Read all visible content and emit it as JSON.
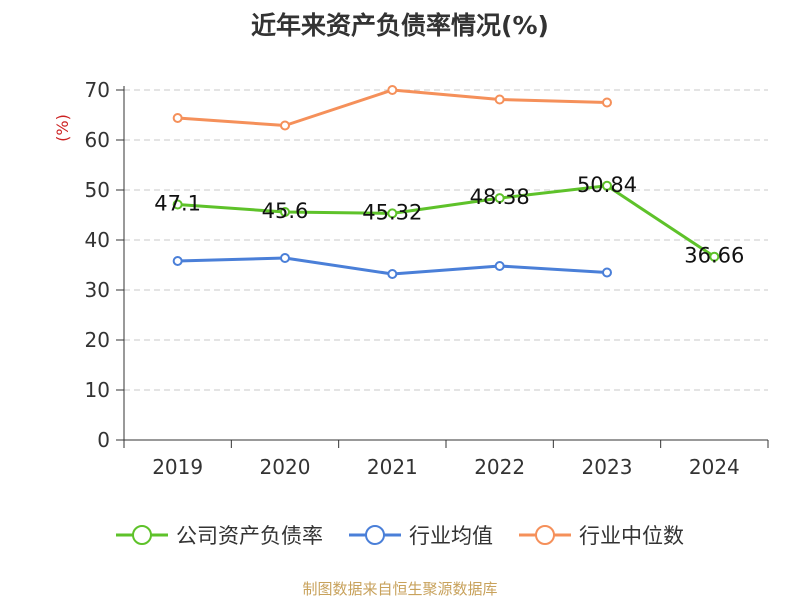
{
  "chart_data": {
    "type": "line",
    "title": "近年来资产负债率情况(%)",
    "ylabel": "(%)",
    "xlabel": "",
    "categories": [
      "2019",
      "2020",
      "2021",
      "2022",
      "2023",
      "2024"
    ],
    "ylim": [
      0,
      70
    ],
    "yticks": [
      0,
      10,
      20,
      30,
      40,
      50,
      60,
      70
    ],
    "grid": true,
    "legend_position": "bottom",
    "series": [
      {
        "name": "公司资产负债率",
        "color": "#5ec22a",
        "values": [
          47.1,
          45.6,
          45.32,
          48.38,
          50.84,
          36.66
        ],
        "data_labels": [
          "47.1",
          "45.6",
          "45.32",
          "48.38",
          "50.84",
          "36.66"
        ]
      },
      {
        "name": "行业均值",
        "color": "#4a7fd8",
        "values": [
          35.8,
          36.4,
          33.2,
          34.8,
          33.5,
          null
        ]
      },
      {
        "name": "行业中位数",
        "color": "#f5905a",
        "values": [
          64.4,
          62.9,
          70.0,
          68.1,
          67.5,
          null
        ]
      }
    ]
  },
  "source_note": "制图数据来自恒生聚源数据库"
}
